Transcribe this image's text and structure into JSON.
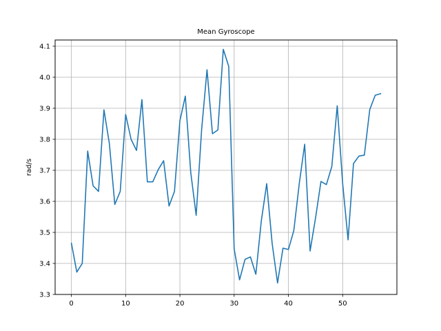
{
  "chart_data": {
    "type": "line",
    "title": "Mean Gyroscope",
    "xlabel": "",
    "ylabel": "rad/s",
    "xlim": [
      -3,
      60
    ],
    "ylim": [
      3.3,
      4.12
    ],
    "grid": true,
    "x_ticks": [
      0,
      10,
      20,
      30,
      40,
      50
    ],
    "y_ticks": [
      3.3,
      3.4,
      3.5,
      3.6,
      3.7,
      3.8,
      3.9,
      4.0,
      4.1
    ],
    "x_tick_labels": [
      "0",
      "10",
      "20",
      "30",
      "40",
      "50"
    ],
    "y_tick_labels": [
      "3.3",
      "3.4",
      "3.5",
      "3.6",
      "3.7",
      "3.8",
      "3.9",
      "4.0",
      "4.1"
    ],
    "series": [
      {
        "color": "#1f77b4",
        "x": [
          0,
          1,
          2,
          3,
          4,
          5,
          6,
          7,
          8,
          9,
          10,
          11,
          12,
          13,
          14,
          15,
          16,
          17,
          18,
          19,
          20,
          21,
          22,
          23,
          24,
          25,
          26,
          27,
          28,
          29,
          30,
          31,
          32,
          33,
          34,
          35,
          36,
          37,
          38,
          39,
          40,
          41,
          42,
          43,
          44,
          45,
          46,
          47,
          48,
          49,
          50,
          51,
          52,
          53,
          54,
          55,
          56,
          57
        ],
        "y": [
          3.465,
          3.372,
          3.4,
          3.762,
          3.65,
          3.632,
          3.895,
          3.786,
          3.59,
          3.632,
          3.88,
          3.8,
          3.764,
          3.928,
          3.663,
          3.663,
          3.702,
          3.731,
          3.585,
          3.632,
          3.86,
          3.939,
          3.693,
          3.555,
          3.83,
          4.024,
          3.818,
          3.83,
          4.09,
          4.035,
          3.447,
          3.347,
          3.413,
          3.421,
          3.365,
          3.536,
          3.657,
          3.465,
          3.337,
          3.449,
          3.445,
          3.506,
          3.657,
          3.784,
          3.44,
          3.546,
          3.664,
          3.654,
          3.712,
          3.908,
          3.658,
          3.476,
          3.722,
          3.746,
          3.749,
          3.896,
          3.942,
          3.947
        ]
      }
    ]
  }
}
